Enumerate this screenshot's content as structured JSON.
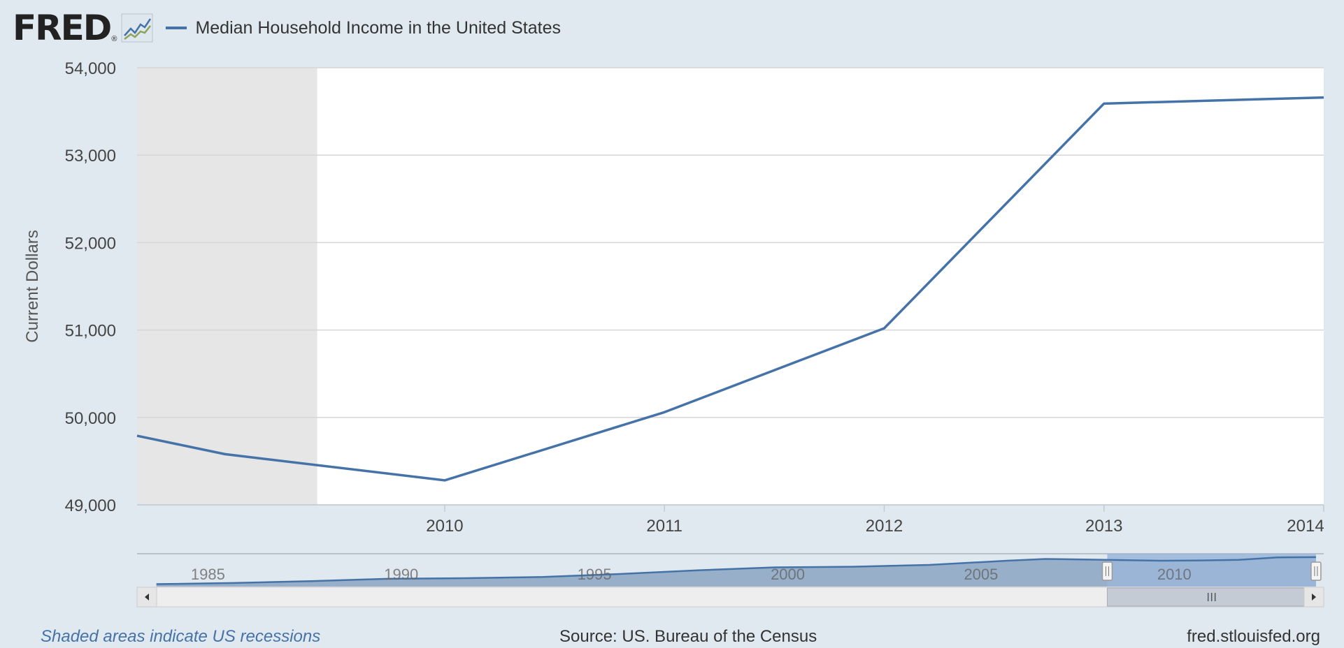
{
  "header": {
    "logo_text": "FRED",
    "logo_reg": "®",
    "logo_icon": "fred-chart-icon"
  },
  "chart_data": {
    "type": "line",
    "title": "Median Household Income in the United States",
    "xlabel": "",
    "ylabel": "Current Dollars",
    "xlim": [
      2008.6,
      2014
    ],
    "ylim": [
      49000,
      54000
    ],
    "grid": true,
    "legend": "top-left",
    "x_ticks": [
      2010,
      2011,
      2012,
      2013,
      2014
    ],
    "y_ticks": [
      49000,
      50000,
      51000,
      52000,
      53000,
      54000
    ],
    "y_tick_labels": [
      "49,000",
      "50,000",
      "51,000",
      "52,000",
      "53,000",
      "54,000"
    ],
    "series": [
      {
        "name": "Median Household Income in the United States",
        "color": "#4572a7",
        "x": [
          2008.6,
          2009,
          2010,
          2011,
          2012,
          2013,
          2014
        ],
        "y": [
          49790,
          49580,
          49280,
          50060,
          51020,
          53590,
          53660
        ]
      }
    ],
    "recessions": [
      [
        2008.6,
        2009.42
      ]
    ],
    "navigator": {
      "labels": [
        "1985",
        "1990",
        "1995",
        "2000",
        "2005",
        "2010"
      ],
      "xlim": [
        1983.5,
        2014.2
      ],
      "selected": [
        2008.6,
        2014
      ],
      "x": [
        1984,
        1986,
        1988,
        1990,
        1992,
        1994,
        1996,
        1998,
        2000,
        2002,
        2004,
        2006,
        2007,
        2008,
        2009,
        2010,
        2011,
        2012,
        2013,
        2014
      ],
      "y": [
        0.08,
        0.12,
        0.18,
        0.26,
        0.28,
        0.32,
        0.42,
        0.54,
        0.64,
        0.66,
        0.72,
        0.86,
        0.92,
        0.9,
        0.88,
        0.86,
        0.87,
        0.89,
        0.97,
        0.98
      ]
    },
    "footer": {
      "note": "Shaded areas indicate US recessions",
      "source": "Source: US. Bureau of the Census",
      "site": "fred.stlouisfed.org"
    },
    "colors": {
      "line": "#4572a7",
      "recession": "#e6e6e6",
      "navigator_fill": "#8fa8c4",
      "navigator_selected": "#9bb6d9",
      "background": "#e1e9f0"
    }
  }
}
